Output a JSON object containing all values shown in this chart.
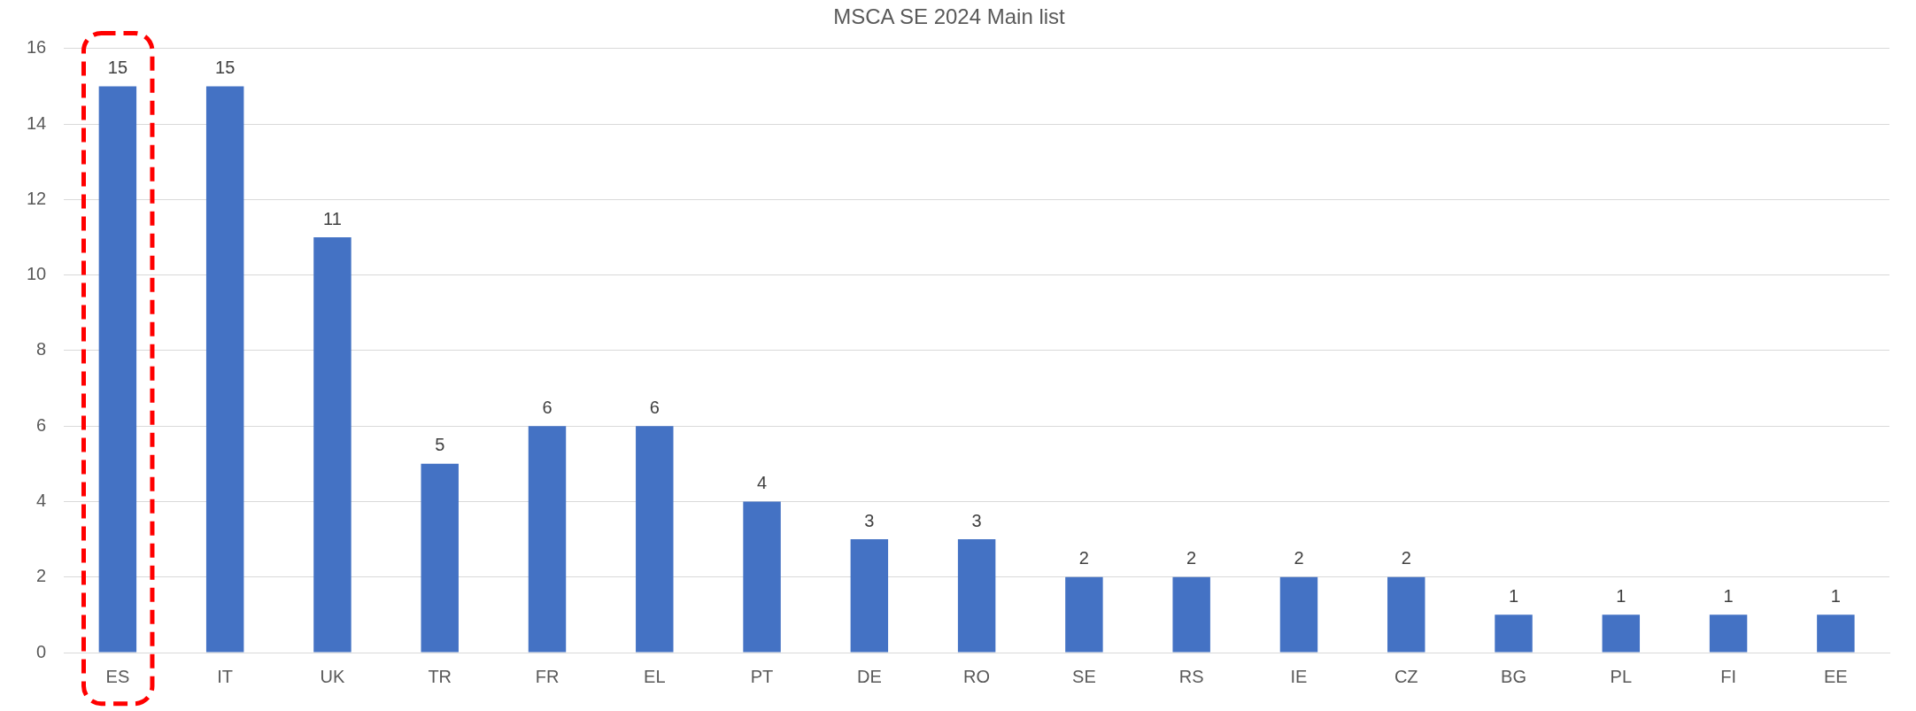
{
  "chart_data": {
    "type": "bar",
    "title": "MSCA SE 2024 Main list",
    "categories": [
      "ES",
      "IT",
      "UK",
      "TR",
      "FR",
      "EL",
      "PT",
      "DE",
      "RO",
      "SE",
      "RS",
      "IE",
      "CZ",
      "BG",
      "PL",
      "FI",
      "EE"
    ],
    "values": [
      15,
      15,
      11,
      5,
      6,
      6,
      4,
      3,
      3,
      2,
      2,
      2,
      2,
      1,
      1,
      1,
      1
    ],
    "color": "#4472c4",
    "ylim": [
      0,
      16
    ],
    "yticks": [
      0,
      2,
      4,
      6,
      8,
      10,
      12,
      14,
      16
    ],
    "grid": "y",
    "data_labels": true
  }
}
